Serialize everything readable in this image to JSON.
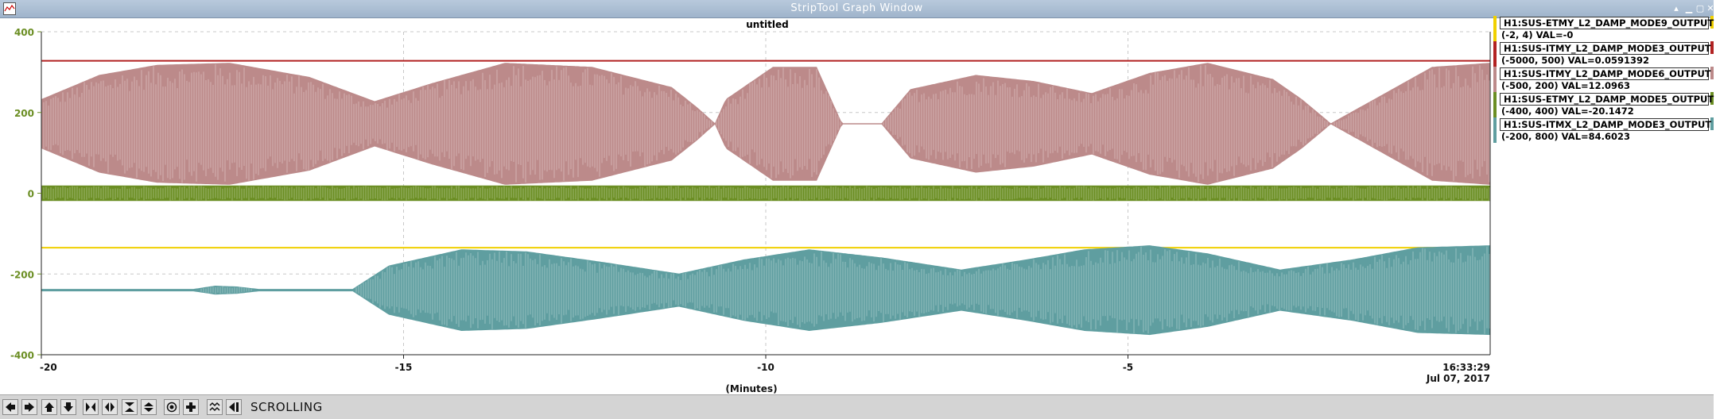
{
  "window": {
    "title": "StripTool Graph Window",
    "buttons": [
      "up-icon",
      "minimize-icon",
      "maximize-icon",
      "close-icon"
    ]
  },
  "chart_data": {
    "type": "line",
    "title": "untitled",
    "xlabel": "(Minutes)",
    "ylabel": "",
    "xlim": [
      -20,
      0
    ],
    "ylim": [
      -400,
      400
    ],
    "x_ticks": [
      "-20",
      "-15",
      "-10",
      "-5"
    ],
    "y_ticks": [
      "400",
      "200",
      "0",
      "-200",
      "-400"
    ],
    "end_time": "16:33:29",
    "end_date": "Jul 07, 2017",
    "axis_color": "#6b8e23",
    "grid": true,
    "series": [
      {
        "name": "H1:SUS-ETMY_L2_DAMP_MODE9_OUTPUT",
        "range": "(-2, 4)",
        "val": "VAL=-0",
        "color": "#f0d000",
        "style": "flat",
        "level": -135
      },
      {
        "name": "H1:SUS-ITMY_L2_DAMP_MODE3_OUTPUT",
        "range": "(-5000, 500)",
        "val": "VAL=0.0591392",
        "color": "#b22222",
        "style": "flat",
        "level": 328
      },
      {
        "name": "H1:SUS-ITMY_L2_DAMP_MODE6_OUTPUT",
        "range": "(-500, 200)",
        "val": "VAL=12.0963",
        "color": "#bc8a8a",
        "style": "band",
        "center": 172,
        "envelope_minutes": [
          -20,
          -19.2,
          -18.4,
          -17.4,
          -16.3,
          -15.4,
          -14.6,
          -13.6,
          -12.4,
          -11.3,
          -10.95,
          -10.7,
          -10.55,
          -9.9,
          -9.3,
          -8.95,
          -8.9,
          -8.4,
          -8.0,
          -7.1,
          -6.3,
          -5.5,
          -4.7,
          -3.9,
          -3.0,
          -2.6,
          -2.2,
          -1.5,
          -0.8,
          0
        ],
        "envelope_amplitude": [
          60,
          120,
          145,
          150,
          115,
          55,
          100,
          150,
          140,
          90,
          40,
          0,
          60,
          140,
          140,
          0,
          0,
          0,
          85,
          120,
          105,
          75,
          125,
          150,
          110,
          60,
          0,
          70,
          140,
          150
        ]
      },
      {
        "name": "H1:SUS-ETMY_L2_DAMP_MODE5_OUTPUT",
        "range": "(-400, 400)",
        "val": "VAL=-20.1472",
        "color": "#6b8e23",
        "style": "band",
        "center": 0,
        "envelope_minutes": [
          -20,
          0
        ],
        "envelope_amplitude": [
          18,
          18
        ]
      },
      {
        "name": "H1:SUS-ITMX_L2_DAMP_MODE3_OUTPUT",
        "range": "(-200, 800)",
        "val": "VAL=84.6023",
        "color": "#5f9ea0",
        "style": "band",
        "center": -240,
        "envelope_minutes": [
          -20,
          -17.9,
          -17.6,
          -17.3,
          -17.0,
          -16.6,
          -15.7,
          -15.2,
          -14.2,
          -13.3,
          -12.3,
          -11.2,
          -10.3,
          -9.4,
          -8.4,
          -7.3,
          -6.4,
          -5.6,
          -4.7,
          -3.9,
          -2.9,
          -1.9,
          -1.0,
          0
        ],
        "envelope_amplitude": [
          2,
          2,
          10,
          8,
          2,
          2,
          2,
          60,
          100,
          95,
          70,
          40,
          75,
          100,
          80,
          50,
          75,
          100,
          110,
          90,
          50,
          75,
          105,
          110
        ]
      }
    ]
  },
  "toolbar": {
    "buttons": [
      "pan-left-icon",
      "pan-right-icon",
      "pan-up-icon",
      "pan-down-icon",
      "zoom-in-x-icon",
      "zoom-out-x-icon",
      "zoom-in-y-icon",
      "zoom-out-y-icon",
      "auto-scale-icon",
      "reset-icon",
      "toggle-grid-icon",
      "refresh-icon"
    ],
    "mode_label": "SCROLLING"
  }
}
